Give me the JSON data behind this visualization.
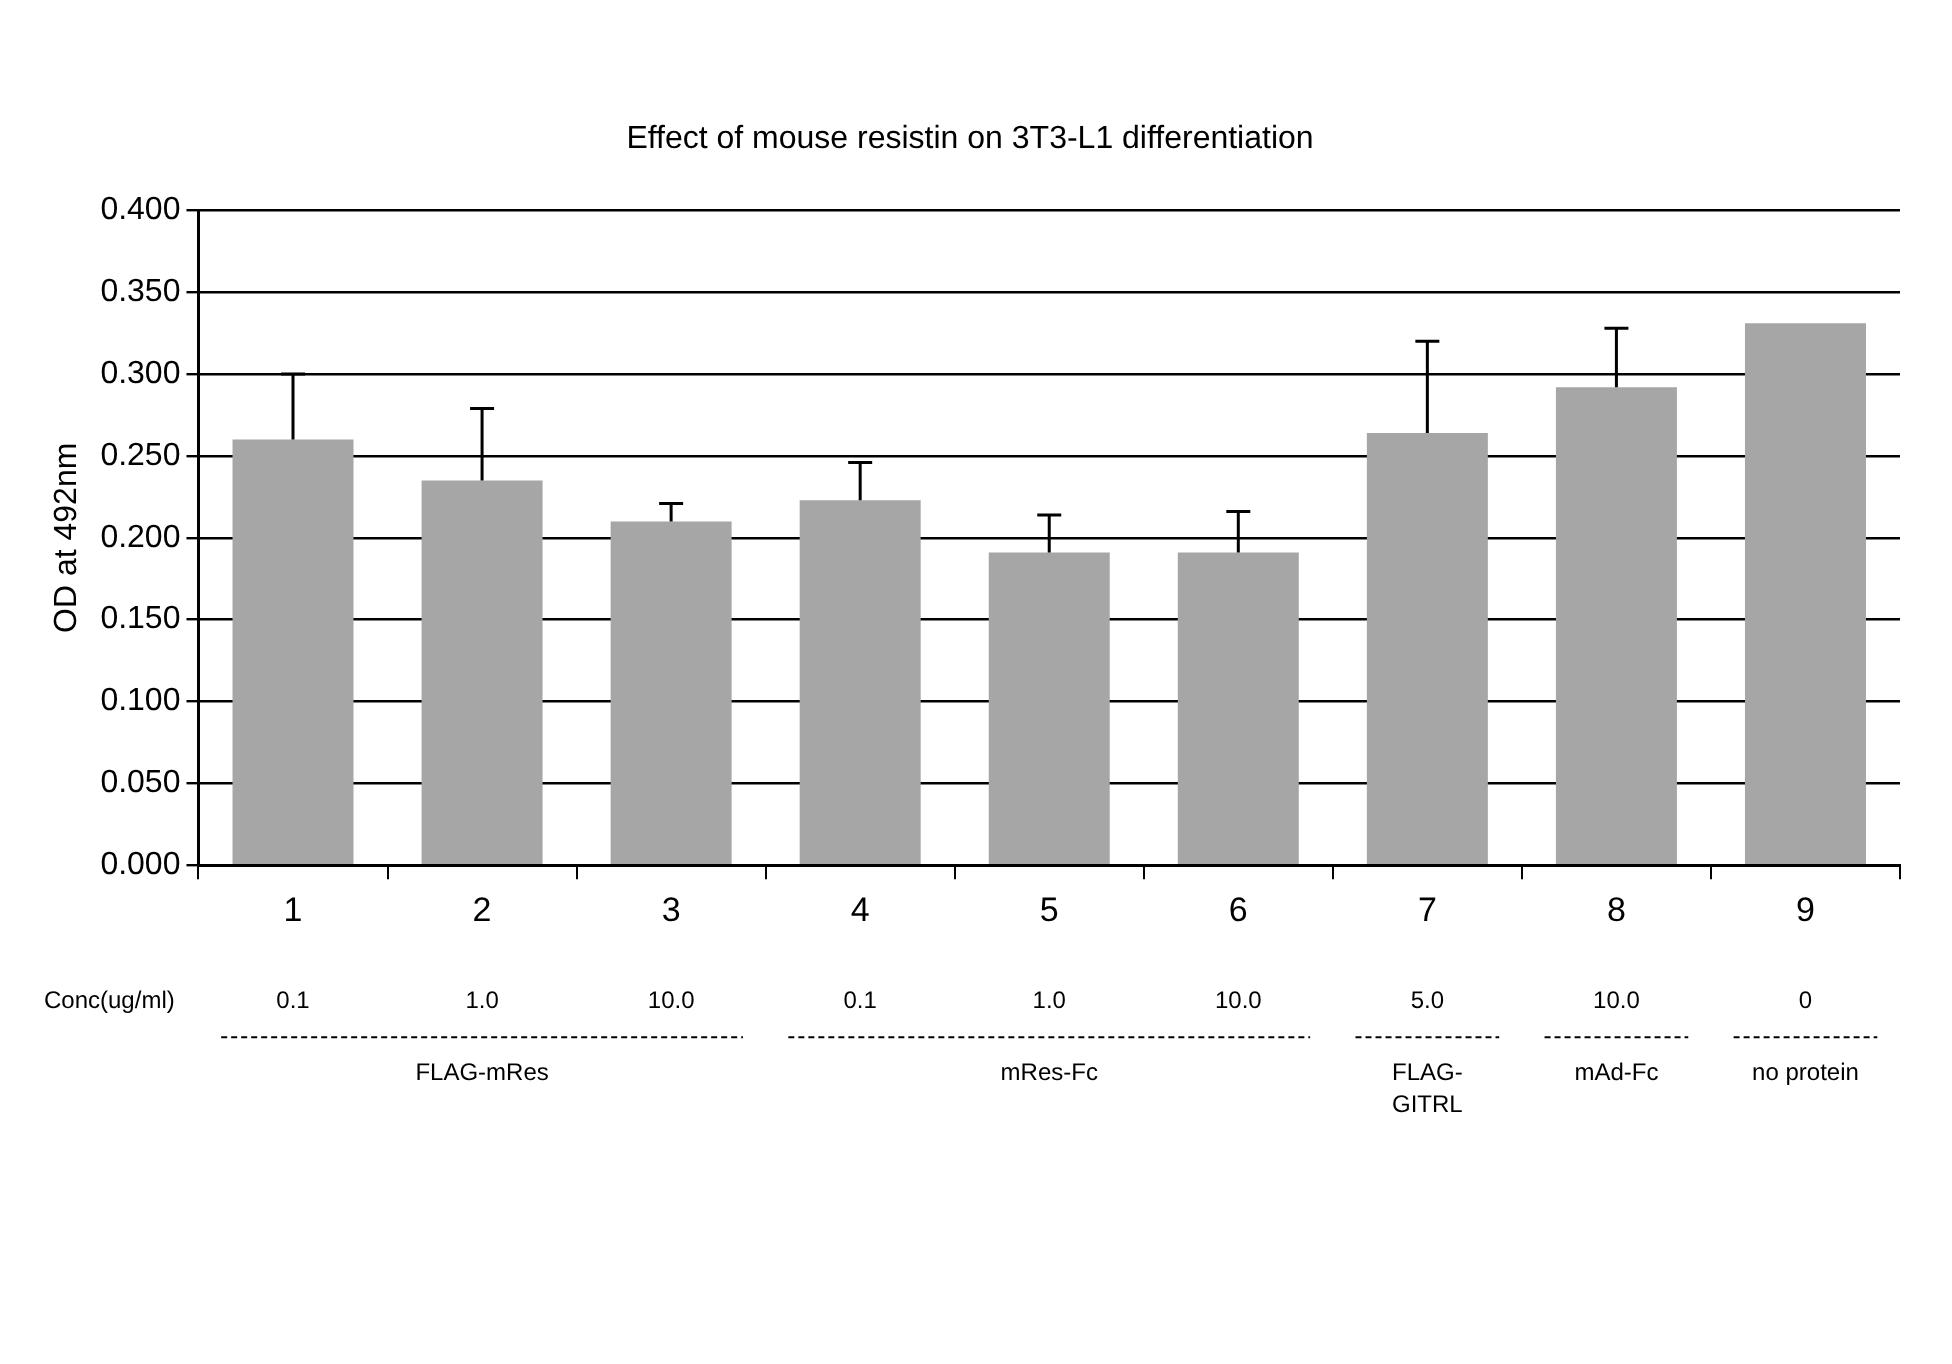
{
  "chart_data": {
    "type": "bar",
    "title": "Effect of mouse resistin on 3T3-L1 differentiation",
    "ylabel": "OD at 492nm",
    "categories": [
      "1",
      "2",
      "3",
      "4",
      "5",
      "6",
      "7",
      "8",
      "9"
    ],
    "values": [
      0.26,
      0.235,
      0.21,
      0.223,
      0.191,
      0.191,
      0.264,
      0.292,
      0.331
    ],
    "errors": [
      [
        0.26,
        0.3
      ],
      [
        0.235,
        0.279
      ],
      [
        0.21,
        0.221
      ],
      [
        0.223,
        0.246
      ],
      [
        0.191,
        0.214
      ],
      [
        0.191,
        0.216
      ],
      [
        0.264,
        0.32
      ],
      [
        0.292,
        0.328
      ],
      null
    ],
    "color": "#a6a6a6",
    "ylim": [
      0,
      0.4
    ],
    "yticks": [
      {
        "value": 0,
        "label": "0.000"
      },
      {
        "value": 0.05,
        "label": "0.050"
      },
      {
        "value": 0.1,
        "label": "0.100"
      },
      {
        "value": 0.15,
        "label": "0.150"
      },
      {
        "value": 0.2,
        "label": "0.200"
      },
      {
        "value": 0.25,
        "label": "0.250"
      },
      {
        "value": 0.3,
        "label": "0.300"
      },
      {
        "value": 0.35,
        "label": "0.350"
      },
      {
        "value": 0.4,
        "label": "0.400"
      }
    ],
    "grid": "y",
    "annotations": [
      "Conc(ug/ml)",
      "0.1",
      "1.0",
      "10.0",
      "0.1",
      "1.0",
      "10.0",
      "5.0",
      "10.0",
      "0",
      "FLAG-mRes",
      "mRes-Fc",
      "FLAG-GITRL",
      "mAd-Fc",
      "no protein"
    ]
  }
}
